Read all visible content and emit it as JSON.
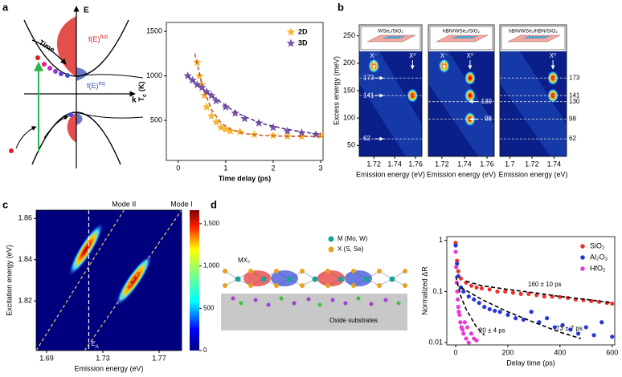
{
  "panel_labels": [
    "a",
    "b",
    "c",
    "d"
  ],
  "diagram_a": {
    "energy_axis": "E",
    "momentum_axis": "k",
    "time_label": "Time",
    "hot_label": [
      "f(E)",
      "hot"
    ],
    "eq_label": [
      "f(E)",
      "eq"
    ]
  },
  "diagram_d": {
    "material_label": "MX₂",
    "legend": [
      "M (Mo, W)",
      "X (S, Se)"
    ],
    "substrate_label": "Oxide substrates"
  },
  "chart_data": [
    {
      "type": "scatter",
      "xlabel": "Time delay (ps)",
      "ylabel": [
        "T",
        "c",
        "(K)"
      ],
      "xlim": [
        -0.25,
        3.05
      ],
      "ylim": [
        50,
        1600
      ],
      "xticks": [
        0,
        1,
        2,
        3
      ],
      "yticks": [
        500,
        1000,
        1500
      ],
      "legend": "upper right",
      "series": [
        {
          "name": "2D",
          "color": "#f5b52e",
          "marker": "star",
          "x": [
            0.4,
            0.45,
            0.5,
            0.55,
            0.6,
            0.7,
            0.8,
            0.9,
            1.0,
            1.1,
            1.3,
            1.6,
            2.0,
            2.3,
            2.6,
            3.0
          ],
          "values": [
            1150,
            1000,
            900,
            780,
            650,
            550,
            480,
            420,
            400,
            380,
            370,
            340,
            330,
            320,
            320,
            330
          ],
          "fit": {
            "color": "#c9572a",
            "x": [
              0.35,
              0.5,
              0.7,
              0.9,
              1.1,
              1.4,
              1.8,
              2.3,
              3.0
            ],
            "values": [
              1250,
              900,
              620,
              470,
              400,
              350,
              330,
              320,
              320
            ]
          }
        },
        {
          "name": "3D",
          "color": "#7a56a8",
          "marker": "star",
          "x": [
            0.2,
            0.3,
            0.4,
            0.5,
            0.6,
            0.7,
            0.8,
            1.0,
            1.2,
            1.4,
            1.7,
            2.0,
            2.3,
            2.6,
            2.9
          ],
          "values": [
            1000,
            950,
            900,
            870,
            820,
            780,
            720,
            650,
            580,
            520,
            470,
            420,
            380,
            360,
            340
          ],
          "fit": {
            "color": "#5b3a8e",
            "x": [
              0.2,
              0.5,
              0.8,
              1.1,
              1.4,
              1.8,
              2.2,
              2.6,
              3.0
            ],
            "values": [
              1000,
              860,
              740,
              630,
              540,
              460,
              410,
              370,
              345
            ]
          }
        }
      ]
    },
    {
      "type": "heatmap",
      "inset_label": "WSe₂/SiO₂",
      "xlabel": "Emission energy (eV)",
      "ylabel": "Excess energy (meV)",
      "xlim": [
        1.706,
        1.766
      ],
      "ylim": [
        30,
        270
      ],
      "xticks": [
        1.72,
        1.74,
        1.76
      ],
      "yticks": [
        50,
        100,
        150,
        200,
        250
      ],
      "peaks": {
        "x": [
          1.757,
          1.72
        ],
        "y": [
          141,
          195
        ]
      },
      "peak_labels": [
        {
          "text": "X⁻",
          "x": 1.72
        },
        {
          "text": "X⁰",
          "x": 1.757
        }
      ],
      "levels": [
        173,
        141,
        62
      ],
      "level_label_side": "left"
    },
    {
      "type": "heatmap",
      "inset_label": "hBN/WSe₂/SiO₂",
      "xlabel": "Emission energy (eV)",
      "xlim": [
        1.708,
        1.7664
      ],
      "ylim": [
        30,
        270
      ],
      "xticks": [
        1.72,
        1.74,
        1.76
      ],
      "peaks": {
        "x": [
          1.745,
          1.745,
          1.745,
          1.722
        ],
        "y": [
          173,
          141,
          98,
          195
        ]
      },
      "peak_labels": [
        {
          "text": "X⁻",
          "x": 1.722
        },
        {
          "text": "X⁰",
          "x": 1.745
        }
      ],
      "levels": [
        130,
        98
      ],
      "level_label_side": "right"
    },
    {
      "type": "heatmap",
      "inset_label": "hBN/WSe₂/hBN/SiO₂",
      "xlabel": "Emission energy (eV)",
      "xlim": [
        1.691,
        1.7513
      ],
      "ylim": [
        30,
        270
      ],
      "xticks": [
        1.7,
        1.72,
        1.74
      ],
      "peaks": {
        "x": [
          1.739,
          1.739
        ],
        "y": [
          141,
          173
        ]
      },
      "peak_labels": [
        {
          "text": "X⁰",
          "x": 1.739
        }
      ],
      "levels": [
        173,
        141,
        130,
        98,
        62
      ],
      "level_label_side": "outside"
    },
    {
      "type": "heatmap",
      "xlabel": "Emission energy (eV)",
      "ylabel": "Excitation energy (eV)",
      "xlim": [
        1.6826,
        1.786
      ],
      "ylim": [
        1.796,
        1.864
      ],
      "xticks": [
        1.69,
        1.73,
        1.77
      ],
      "yticks": [
        1.82,
        1.84,
        1.86
      ],
      "peaks": {
        "x": [
          1.718,
          1.752
        ],
        "y": [
          1.845,
          1.83
        ]
      },
      "guides": [
        {
          "name": "Mode II",
          "x": [
            1.6826,
            1.745
          ],
          "y": [
            1.796,
            1.864
          ]
        },
        {
          "name": "Mode I",
          "x": [
            1.717,
            1.786
          ],
          "y": [
            1.796,
            1.864
          ]
        }
      ],
      "marker_line": {
        "label": [
          "E",
          "A"
        ],
        "x": 1.72
      },
      "colorbar": {
        "lim": [
          0,
          1660
        ],
        "ticks": [
          0,
          500,
          {
            "value": 1000,
            "label": "1,000"
          },
          {
            "value": 1500,
            "label": "1,500"
          }
        ]
      }
    },
    {
      "type": "scatter",
      "log_y": true,
      "xlabel": "Delay time (ps)",
      "ylabel": "Normalized ΔR",
      "xlim": [
        -34,
        610
      ],
      "ylim": [
        0.009,
        1.19
      ],
      "xticks": [
        0,
        200,
        400,
        600
      ],
      "yticks": [
        0.01,
        0.1,
        1
      ],
      "legend": "upper right",
      "series": [
        {
          "name": "SiO₂",
          "color": "#e8352e",
          "marker": "circle",
          "x": [
            0,
            5,
            10,
            20,
            40,
            60,
            80,
            100,
            130,
            160,
            190,
            220,
            250,
            280,
            310,
            340,
            370,
            400,
            430,
            460,
            490,
            520,
            550,
            580,
            600
          ],
          "values": [
            0.9,
            0.4,
            0.25,
            0.18,
            0.15,
            0.13,
            0.12,
            0.115,
            0.11,
            0.1,
            0.1,
            0.095,
            0.09,
            0.09,
            0.085,
            0.08,
            0.08,
            0.078,
            0.075,
            0.07,
            0.068,
            0.065,
            0.063,
            0.06,
            0.058
          ],
          "fit": {
            "color": "#000000",
            "x": [
              40,
              100,
              200,
              300,
              400,
              500,
              600
            ],
            "values": [
              0.16,
              0.13,
              0.11,
              0.095,
              0.08,
              0.07,
              0.06
            ]
          }
        },
        {
          "name": "Al₂O₃",
          "color": "#2a35d8",
          "marker": "circle",
          "x": [
            0,
            5,
            10,
            20,
            30,
            50,
            70,
            90,
            110,
            130,
            150,
            170,
            200,
            230,
            260,
            290,
            320,
            350,
            380,
            410,
            440,
            470,
            500,
            530,
            560,
            600
          ],
          "values": [
            0.8,
            0.35,
            0.2,
            0.12,
            0.1,
            0.08,
            0.07,
            0.06,
            0.05,
            0.045,
            0.042,
            0.04,
            0.035,
            0.03,
            0.028,
            0.04,
            0.025,
            0.03,
            0.02,
            0.022,
            0.018,
            0.015,
            0.02,
            0.014,
            0.025,
            0.013
          ],
          "fit": {
            "color": "#000000",
            "x": [
              20,
              100,
              200,
              300,
              400,
              480
            ],
            "values": [
              0.12,
              0.07,
              0.04,
              0.025,
              0.016,
              0.012
            ]
          }
        },
        {
          "name": "HfO₂",
          "color": "#e53bd6",
          "marker": "circle",
          "x": [
            0,
            2,
            4,
            6,
            8,
            10,
            12,
            15,
            18,
            22,
            26,
            30,
            35,
            40,
            45,
            50,
            60,
            70,
            80
          ],
          "values": [
            0.6,
            0.3,
            0.15,
            0.1,
            0.07,
            0.05,
            0.04,
            0.035,
            0.025,
            0.02,
            0.018,
            0.015,
            0.025,
            0.012,
            0.02,
            0.01,
            0.015,
            0.012,
            0.011
          ],
          "fit": {
            "color": "#000000",
            "x": [
              0,
              20,
              40,
              60,
              80,
              110
            ],
            "values": [
              0.2,
              0.08,
              0.045,
              0.03,
              0.02,
              0.014
            ]
          }
        }
      ],
      "annotations": [
        {
          "text": "160 ± 10 ps",
          "x": 277,
          "y": 0.136
        },
        {
          "text": "73 ± 7 ps",
          "x": 385,
          "y": 0.0185
        },
        {
          "text": "20 ± 4 ps",
          "x": 89,
          "y": 0.017
        }
      ]
    }
  ]
}
